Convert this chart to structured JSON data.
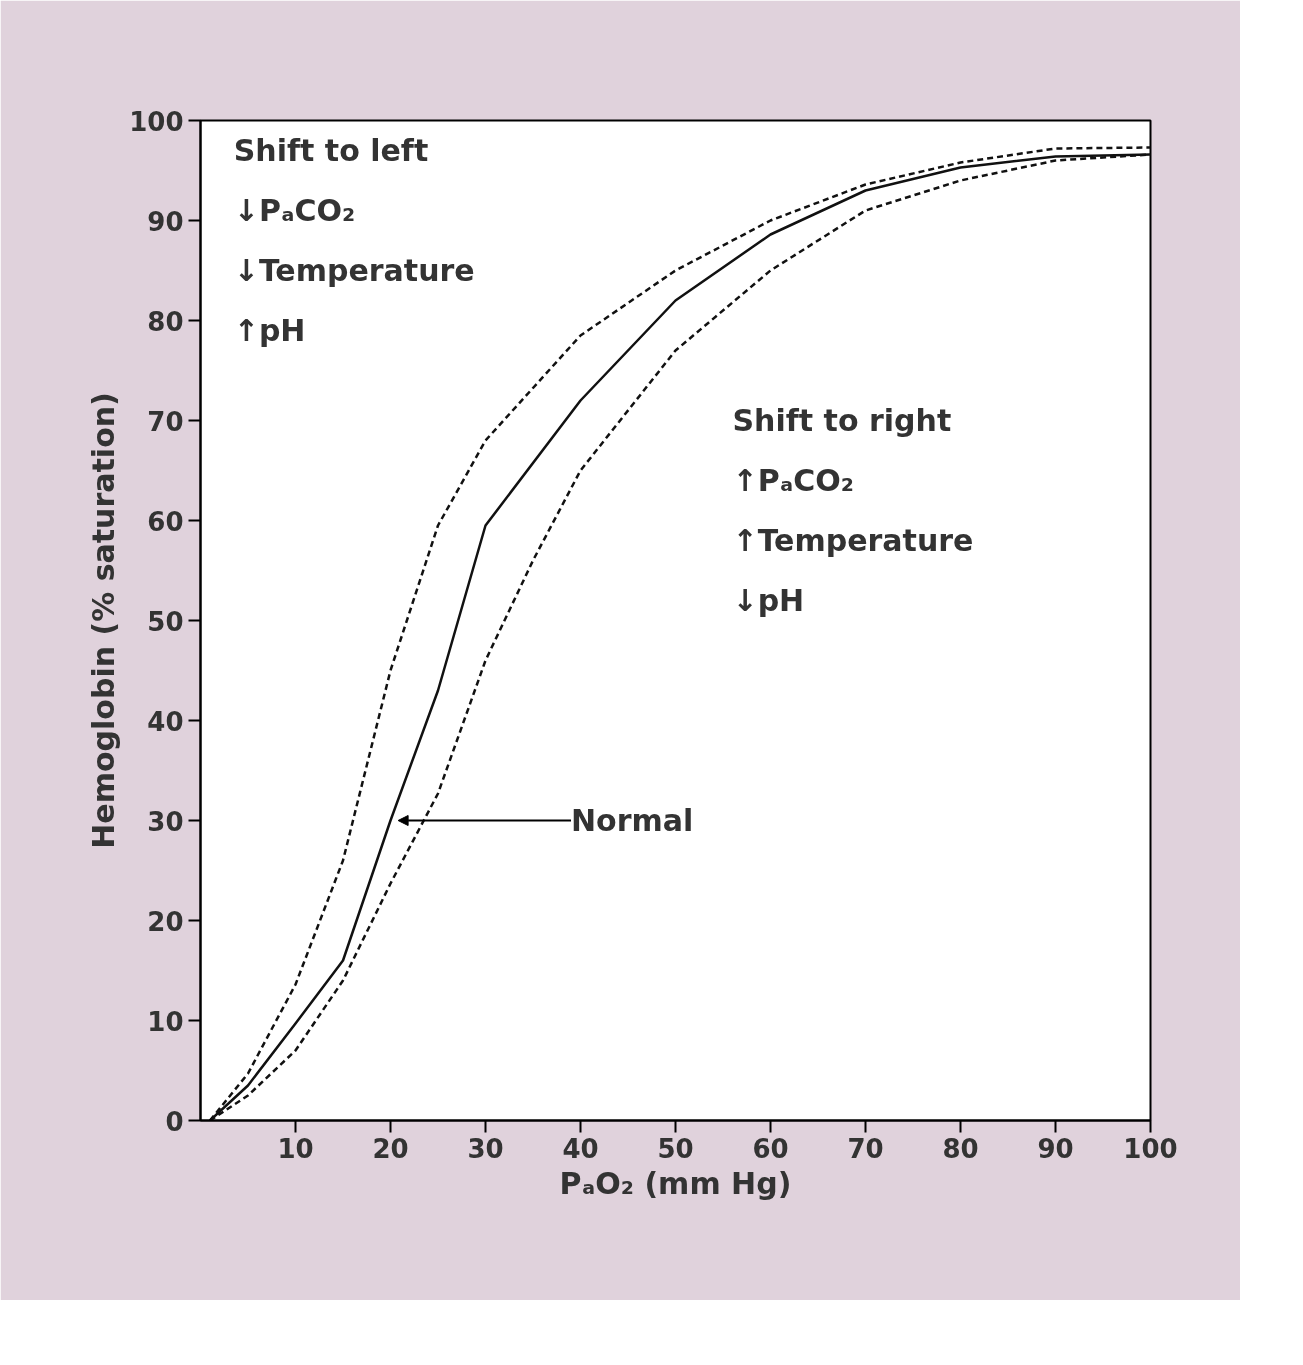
{
  "chart_data": {
    "type": "line",
    "xlabel": "PₐO₂ (mm Hg)",
    "ylabel": "Hemoglobin (% saturation)",
    "xlim": [
      0,
      100
    ],
    "ylim": [
      0,
      100
    ],
    "xticks": [
      10,
      20,
      30,
      40,
      50,
      60,
      70,
      80,
      90,
      100
    ],
    "yticks": [
      0,
      10,
      20,
      30,
      40,
      50,
      60,
      70,
      80,
      90,
      100
    ],
    "grid": false,
    "marker": "none",
    "annotations": [
      "Shift to left",
      "↓PₐCO₂",
      "↓Temperature",
      "↑pH",
      "Shift to right",
      "↑PₐCO₂",
      "↑Temperature",
      "↓pH",
      {
        "text": "Normal",
        "x": 20,
        "y": 30
      }
    ],
    "series": [
      {
        "color": "#111111",
        "line_style": "dashed",
        "x": [
          1,
          5,
          10,
          15,
          20,
          25,
          30,
          40,
          50,
          60,
          70,
          80,
          90,
          100
        ],
        "values": [
          0,
          4.7,
          13.6,
          26,
          45,
          59.5,
          68,
          78.5,
          85,
          90,
          93.6,
          95.8,
          97.2,
          97.3
        ]
      },
      {
        "color": "#111111",
        "line_style": "solid",
        "x": [
          1,
          5,
          10,
          15,
          20,
          25,
          30,
          40,
          50,
          60,
          70,
          80,
          90,
          100
        ],
        "values": [
          0,
          3.5,
          9.7,
          16,
          30,
          43,
          59.5,
          72,
          82,
          88.6,
          93,
          95.3,
          96.4,
          96.6
        ]
      },
      {
        "color": "#111111",
        "line_style": "dashed",
        "x": [
          1,
          5,
          10,
          15,
          20,
          25,
          30,
          35,
          40,
          50,
          60,
          70,
          80,
          90,
          100
        ],
        "values": [
          0,
          2.5,
          7,
          14,
          23.7,
          32.7,
          46,
          56,
          65,
          77,
          85,
          91,
          94,
          96,
          96.6
        ]
      }
    ]
  }
}
